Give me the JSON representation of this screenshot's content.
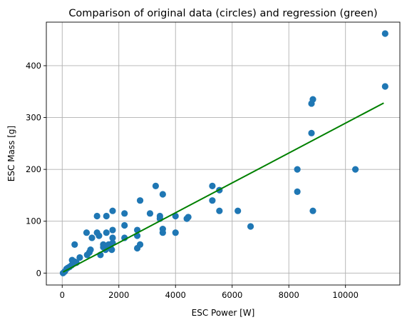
{
  "chart_data": {
    "type": "scatter",
    "title": "Comparison of original data (circles) and regression (green)",
    "xlabel": "ESC Power [W]",
    "ylabel": "ESC Mass [g]",
    "xlim": [
      -560,
      11920
    ],
    "ylim": [
      -23,
      484
    ],
    "xticks": [
      0,
      2000,
      4000,
      6000,
      8000,
      10000
    ],
    "yticks": [
      0,
      100,
      200,
      300,
      400
    ],
    "grid": true,
    "series": [
      {
        "kind": "scatter",
        "color": "#1f77b4",
        "points": [
          [
            30,
            0
          ],
          [
            90,
            3
          ],
          [
            150,
            8
          ],
          [
            200,
            10
          ],
          [
            260,
            12
          ],
          [
            330,
            15
          ],
          [
            400,
            18
          ],
          [
            350,
            25
          ],
          [
            440,
            22
          ],
          [
            500,
            20
          ],
          [
            440,
            55
          ],
          [
            620,
            30
          ],
          [
            880,
            35
          ],
          [
            860,
            78
          ],
          [
            960,
            40
          ],
          [
            1000,
            45
          ],
          [
            1050,
            68
          ],
          [
            1230,
            110
          ],
          [
            1230,
            78
          ],
          [
            1300,
            72
          ],
          [
            1350,
            35
          ],
          [
            1450,
            50
          ],
          [
            1450,
            55
          ],
          [
            1530,
            45
          ],
          [
            1560,
            110
          ],
          [
            1560,
            78
          ],
          [
            1640,
            55
          ],
          [
            1700,
            50
          ],
          [
            1750,
            45
          ],
          [
            1780,
            58
          ],
          [
            1780,
            68
          ],
          [
            1780,
            83
          ],
          [
            1780,
            120
          ],
          [
            2200,
            115
          ],
          [
            2200,
            92
          ],
          [
            2200,
            68
          ],
          [
            2650,
            72
          ],
          [
            2650,
            83
          ],
          [
            2650,
            48
          ],
          [
            2750,
            55
          ],
          [
            2750,
            140
          ],
          [
            3100,
            115
          ],
          [
            3300,
            168
          ],
          [
            3450,
            110
          ],
          [
            3450,
            105
          ],
          [
            3550,
            152
          ],
          [
            3550,
            85
          ],
          [
            3550,
            78
          ],
          [
            4000,
            110
          ],
          [
            4000,
            78
          ],
          [
            4400,
            105
          ],
          [
            4450,
            108
          ],
          [
            5300,
            140
          ],
          [
            5300,
            168
          ],
          [
            5550,
            160
          ],
          [
            5550,
            120
          ],
          [
            6200,
            120
          ],
          [
            6650,
            90
          ],
          [
            8300,
            200
          ],
          [
            8300,
            157
          ],
          [
            8800,
            270
          ],
          [
            8800,
            327
          ],
          [
            8850,
            335
          ],
          [
            8850,
            120
          ],
          [
            10350,
            200
          ],
          [
            11400,
            462
          ],
          [
            11400,
            360
          ]
        ]
      },
      {
        "kind": "line",
        "color": "#008000",
        "points": [
          [
            30,
            2
          ],
          [
            11350,
            328
          ]
        ]
      }
    ]
  }
}
